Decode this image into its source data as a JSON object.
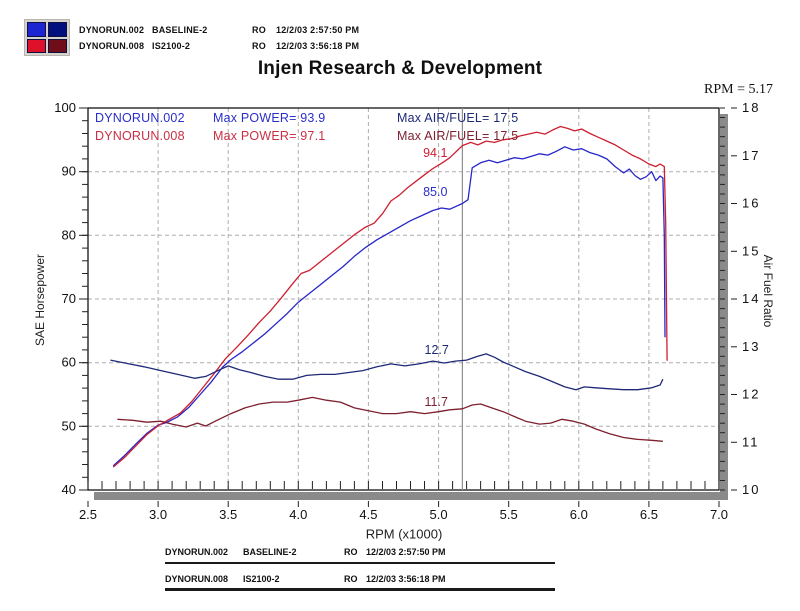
{
  "title": "Injen Research & Development",
  "cursor_readout": "RPM = 5.17",
  "logo": {
    "colors": [
      "#1d24d2",
      "#01107c",
      "#df1029",
      "#6f0d19"
    ]
  },
  "runs": [
    {
      "file": "DYNORUN.002",
      "config": "BASELINE-2",
      "ro": "RO",
      "time": "12/2/03 2:57:50 PM"
    },
    {
      "file": "DYNORUN.008",
      "config": "IS2100-2",
      "ro": "RO",
      "time": "12/2/03 3:56:18 PM"
    }
  ],
  "stats": [
    {
      "file": "DYNORUN.002",
      "power": "Max POWER= 93.9",
      "afr": "Max AIR/FUEL= 17.5",
      "power_color": "#2a2ecb",
      "afr_color": "#1e2a78"
    },
    {
      "file": "DYNORUN.008",
      "power": "Max POWER= 97.1",
      "afr": "Max AIR/FUEL= 17.5",
      "power_color": "#c93044",
      "afr_color": "#7d1f2e"
    }
  ],
  "axis_labels": {
    "left": "SAE Horsepower",
    "right": "Air Fuel Ratio",
    "bottom": "RPM (x1000)"
  },
  "chart_data": {
    "type": "line",
    "title": "Injen Research & Development",
    "xlabel": "RPM (x1000)",
    "ylabel_left": "SAE Horsepower",
    "ylabel_right": "Air Fuel Ratio",
    "x_range": [
      2.5,
      7.0
    ],
    "y_left_range": [
      40,
      100
    ],
    "y_right_range": [
      10,
      18
    ],
    "x_major_step": 0.5,
    "x_minor_step": 0.1,
    "y_left_major_step": 10,
    "y_left_minor_step": 2,
    "y_right_major_step": 1,
    "y_right_minor_step": 0.2,
    "grid": "dashed",
    "cursor_rpm": 5.17,
    "style": {
      "grid_color": "#adadad",
      "border_color": "#000000",
      "shadow_color": "#8a8a8a",
      "cursor_color": "#8f8f8f",
      "tick_color": "#222222",
      "label_color": "#111111"
    },
    "series": [
      {
        "name": "DYNORUN.002 Power",
        "axis": "hp",
        "color": "#2626c9",
        "points": [
          [
            2.68,
            43.8
          ],
          [
            2.76,
            45.4
          ],
          [
            2.84,
            47.2
          ],
          [
            2.92,
            48.9
          ],
          [
            3.0,
            50.2
          ],
          [
            3.06,
            50.6
          ],
          [
            3.14,
            51.5
          ],
          [
            3.22,
            53.0
          ],
          [
            3.3,
            55.0
          ],
          [
            3.38,
            57.0
          ],
          [
            3.46,
            59.3
          ],
          [
            3.52,
            60.5
          ],
          [
            3.6,
            61.7
          ],
          [
            3.68,
            63.1
          ],
          [
            3.76,
            64.5
          ],
          [
            3.84,
            66.1
          ],
          [
            3.92,
            67.7
          ],
          [
            4.0,
            69.5
          ],
          [
            4.08,
            70.9
          ],
          [
            4.16,
            72.3
          ],
          [
            4.24,
            73.7
          ],
          [
            4.32,
            75.1
          ],
          [
            4.4,
            76.7
          ],
          [
            4.48,
            78.1
          ],
          [
            4.56,
            79.3
          ],
          [
            4.64,
            80.3
          ],
          [
            4.72,
            81.3
          ],
          [
            4.8,
            82.3
          ],
          [
            4.88,
            83.1
          ],
          [
            4.96,
            83.9
          ],
          [
            5.02,
            84.3
          ],
          [
            5.08,
            84.1
          ],
          [
            5.17,
            85.0
          ],
          [
            5.21,
            85.6
          ],
          [
            5.24,
            90.6
          ],
          [
            5.3,
            91.4
          ],
          [
            5.36,
            91.8
          ],
          [
            5.42,
            91.4
          ],
          [
            5.48,
            91.8
          ],
          [
            5.54,
            92.2
          ],
          [
            5.6,
            92.0
          ],
          [
            5.66,
            92.4
          ],
          [
            5.72,
            92.8
          ],
          [
            5.78,
            92.6
          ],
          [
            5.84,
            93.2
          ],
          [
            5.9,
            93.9
          ],
          [
            5.96,
            93.4
          ],
          [
            6.02,
            93.6
          ],
          [
            6.08,
            93.0
          ],
          [
            6.14,
            92.6
          ],
          [
            6.2,
            92.0
          ],
          [
            6.26,
            90.8
          ],
          [
            6.32,
            89.8
          ],
          [
            6.36,
            90.4
          ],
          [
            6.4,
            89.4
          ],
          [
            6.44,
            88.8
          ],
          [
            6.48,
            89.2
          ],
          [
            6.52,
            90.0
          ],
          [
            6.55,
            88.6
          ],
          [
            6.58,
            89.3
          ],
          [
            6.6,
            89.0
          ],
          [
            6.61,
            80.0
          ],
          [
            6.615,
            64.0
          ]
        ]
      },
      {
        "name": "DYNORUN.008 Power",
        "axis": "hp",
        "color": "#cd1f31",
        "points": [
          [
            2.68,
            43.6
          ],
          [
            2.76,
            45.1
          ],
          [
            2.84,
            46.9
          ],
          [
            2.92,
            48.7
          ],
          [
            3.0,
            50.1
          ],
          [
            3.08,
            51.1
          ],
          [
            3.16,
            52.1
          ],
          [
            3.24,
            53.9
          ],
          [
            3.32,
            56.1
          ],
          [
            3.4,
            58.3
          ],
          [
            3.48,
            60.6
          ],
          [
            3.56,
            62.4
          ],
          [
            3.64,
            64.3
          ],
          [
            3.72,
            66.3
          ],
          [
            3.8,
            68.1
          ],
          [
            3.88,
            70.2
          ],
          [
            3.96,
            72.4
          ],
          [
            4.02,
            74.0
          ],
          [
            4.08,
            74.5
          ],
          [
            4.16,
            75.9
          ],
          [
            4.24,
            77.3
          ],
          [
            4.32,
            78.7
          ],
          [
            4.4,
            80.1
          ],
          [
            4.48,
            81.3
          ],
          [
            4.54,
            81.9
          ],
          [
            4.6,
            83.4
          ],
          [
            4.66,
            85.4
          ],
          [
            4.72,
            86.3
          ],
          [
            4.78,
            87.5
          ],
          [
            4.84,
            88.5
          ],
          [
            4.9,
            89.5
          ],
          [
            4.96,
            90.5
          ],
          [
            5.02,
            91.3
          ],
          [
            5.08,
            92.2
          ],
          [
            5.17,
            94.1
          ],
          [
            5.23,
            94.6
          ],
          [
            5.28,
            94.2
          ],
          [
            5.34,
            94.8
          ],
          [
            5.4,
            94.6
          ],
          [
            5.46,
            95.0
          ],
          [
            5.52,
            95.2
          ],
          [
            5.58,
            95.6
          ],
          [
            5.64,
            95.9
          ],
          [
            5.7,
            96.2
          ],
          [
            5.76,
            95.9
          ],
          [
            5.82,
            96.6
          ],
          [
            5.87,
            97.1
          ],
          [
            5.92,
            96.8
          ],
          [
            5.97,
            96.4
          ],
          [
            6.02,
            96.7
          ],
          [
            6.08,
            96.0
          ],
          [
            6.14,
            95.4
          ],
          [
            6.2,
            94.8
          ],
          [
            6.26,
            94.2
          ],
          [
            6.32,
            93.4
          ],
          [
            6.38,
            92.6
          ],
          [
            6.44,
            92.0
          ],
          [
            6.5,
            91.2
          ],
          [
            6.55,
            90.8
          ],
          [
            6.58,
            91.2
          ],
          [
            6.61,
            90.8
          ],
          [
            6.62,
            82.0
          ],
          [
            6.63,
            60.3
          ]
        ]
      },
      {
        "name": "DYNORUN.002 Air/Fuel",
        "axis": "afr",
        "color": "#1e2a78",
        "points": [
          [
            2.66,
            12.72
          ],
          [
            2.78,
            12.65
          ],
          [
            2.9,
            12.58
          ],
          [
            3.02,
            12.5
          ],
          [
            3.14,
            12.42
          ],
          [
            3.26,
            12.34
          ],
          [
            3.34,
            12.38
          ],
          [
            3.44,
            12.52
          ],
          [
            3.5,
            12.6
          ],
          [
            3.58,
            12.52
          ],
          [
            3.66,
            12.46
          ],
          [
            3.76,
            12.38
          ],
          [
            3.86,
            12.32
          ],
          [
            3.96,
            12.32
          ],
          [
            4.06,
            12.4
          ],
          [
            4.16,
            12.42
          ],
          [
            4.26,
            12.42
          ],
          [
            4.36,
            12.46
          ],
          [
            4.46,
            12.5
          ],
          [
            4.56,
            12.58
          ],
          [
            4.66,
            12.64
          ],
          [
            4.76,
            12.6
          ],
          [
            4.86,
            12.64
          ],
          [
            4.96,
            12.7
          ],
          [
            5.04,
            12.66
          ],
          [
            5.12,
            12.7
          ],
          [
            5.2,
            12.72
          ],
          [
            5.28,
            12.8
          ],
          [
            5.34,
            12.85
          ],
          [
            5.4,
            12.78
          ],
          [
            5.46,
            12.68
          ],
          [
            5.54,
            12.58
          ],
          [
            5.62,
            12.48
          ],
          [
            5.72,
            12.38
          ],
          [
            5.82,
            12.26
          ],
          [
            5.9,
            12.16
          ],
          [
            5.98,
            12.1
          ],
          [
            6.04,
            12.16
          ],
          [
            6.12,
            12.14
          ],
          [
            6.22,
            12.12
          ],
          [
            6.32,
            12.1
          ],
          [
            6.42,
            12.1
          ],
          [
            6.52,
            12.14
          ],
          [
            6.58,
            12.2
          ],
          [
            6.6,
            12.32
          ]
        ]
      },
      {
        "name": "DYNORUN.008 Air/Fuel",
        "axis": "afr",
        "color": "#7d1f2e",
        "points": [
          [
            2.71,
            11.48
          ],
          [
            2.82,
            11.46
          ],
          [
            2.92,
            11.42
          ],
          [
            3.02,
            11.44
          ],
          [
            3.1,
            11.38
          ],
          [
            3.2,
            11.32
          ],
          [
            3.28,
            11.4
          ],
          [
            3.34,
            11.34
          ],
          [
            3.42,
            11.46
          ],
          [
            3.52,
            11.6
          ],
          [
            3.62,
            11.72
          ],
          [
            3.72,
            11.8
          ],
          [
            3.82,
            11.84
          ],
          [
            3.92,
            11.84
          ],
          [
            4.0,
            11.88
          ],
          [
            4.1,
            11.94
          ],
          [
            4.2,
            11.88
          ],
          [
            4.3,
            11.84
          ],
          [
            4.4,
            11.72
          ],
          [
            4.5,
            11.66
          ],
          [
            4.6,
            11.6
          ],
          [
            4.7,
            11.6
          ],
          [
            4.8,
            11.64
          ],
          [
            4.9,
            11.6
          ],
          [
            5.0,
            11.64
          ],
          [
            5.08,
            11.68
          ],
          [
            5.17,
            11.7
          ],
          [
            5.24,
            11.78
          ],
          [
            5.3,
            11.8
          ],
          [
            5.38,
            11.72
          ],
          [
            5.46,
            11.64
          ],
          [
            5.54,
            11.54
          ],
          [
            5.62,
            11.44
          ],
          [
            5.72,
            11.38
          ],
          [
            5.8,
            11.4
          ],
          [
            5.88,
            11.48
          ],
          [
            5.96,
            11.44
          ],
          [
            6.04,
            11.38
          ],
          [
            6.12,
            11.28
          ],
          [
            6.22,
            11.18
          ],
          [
            6.32,
            11.1
          ],
          [
            6.42,
            11.06
          ],
          [
            6.52,
            11.04
          ],
          [
            6.6,
            11.02
          ]
        ]
      }
    ],
    "annotations": [
      {
        "text": "94.1",
        "axis": "hp",
        "rpm": 4.89,
        "value": 92.9,
        "color": "#cd1f31"
      },
      {
        "text": "85.0",
        "axis": "hp",
        "rpm": 4.89,
        "value": 86.8,
        "color": "#2a2ecb"
      },
      {
        "text": "12.7",
        "axis": "afr",
        "rpm": 4.9,
        "value": 12.93,
        "color": "#1e2a78"
      },
      {
        "text": "11.7",
        "axis": "afr",
        "rpm": 4.9,
        "value": 11.84,
        "color": "#7d1f2e"
      }
    ]
  }
}
